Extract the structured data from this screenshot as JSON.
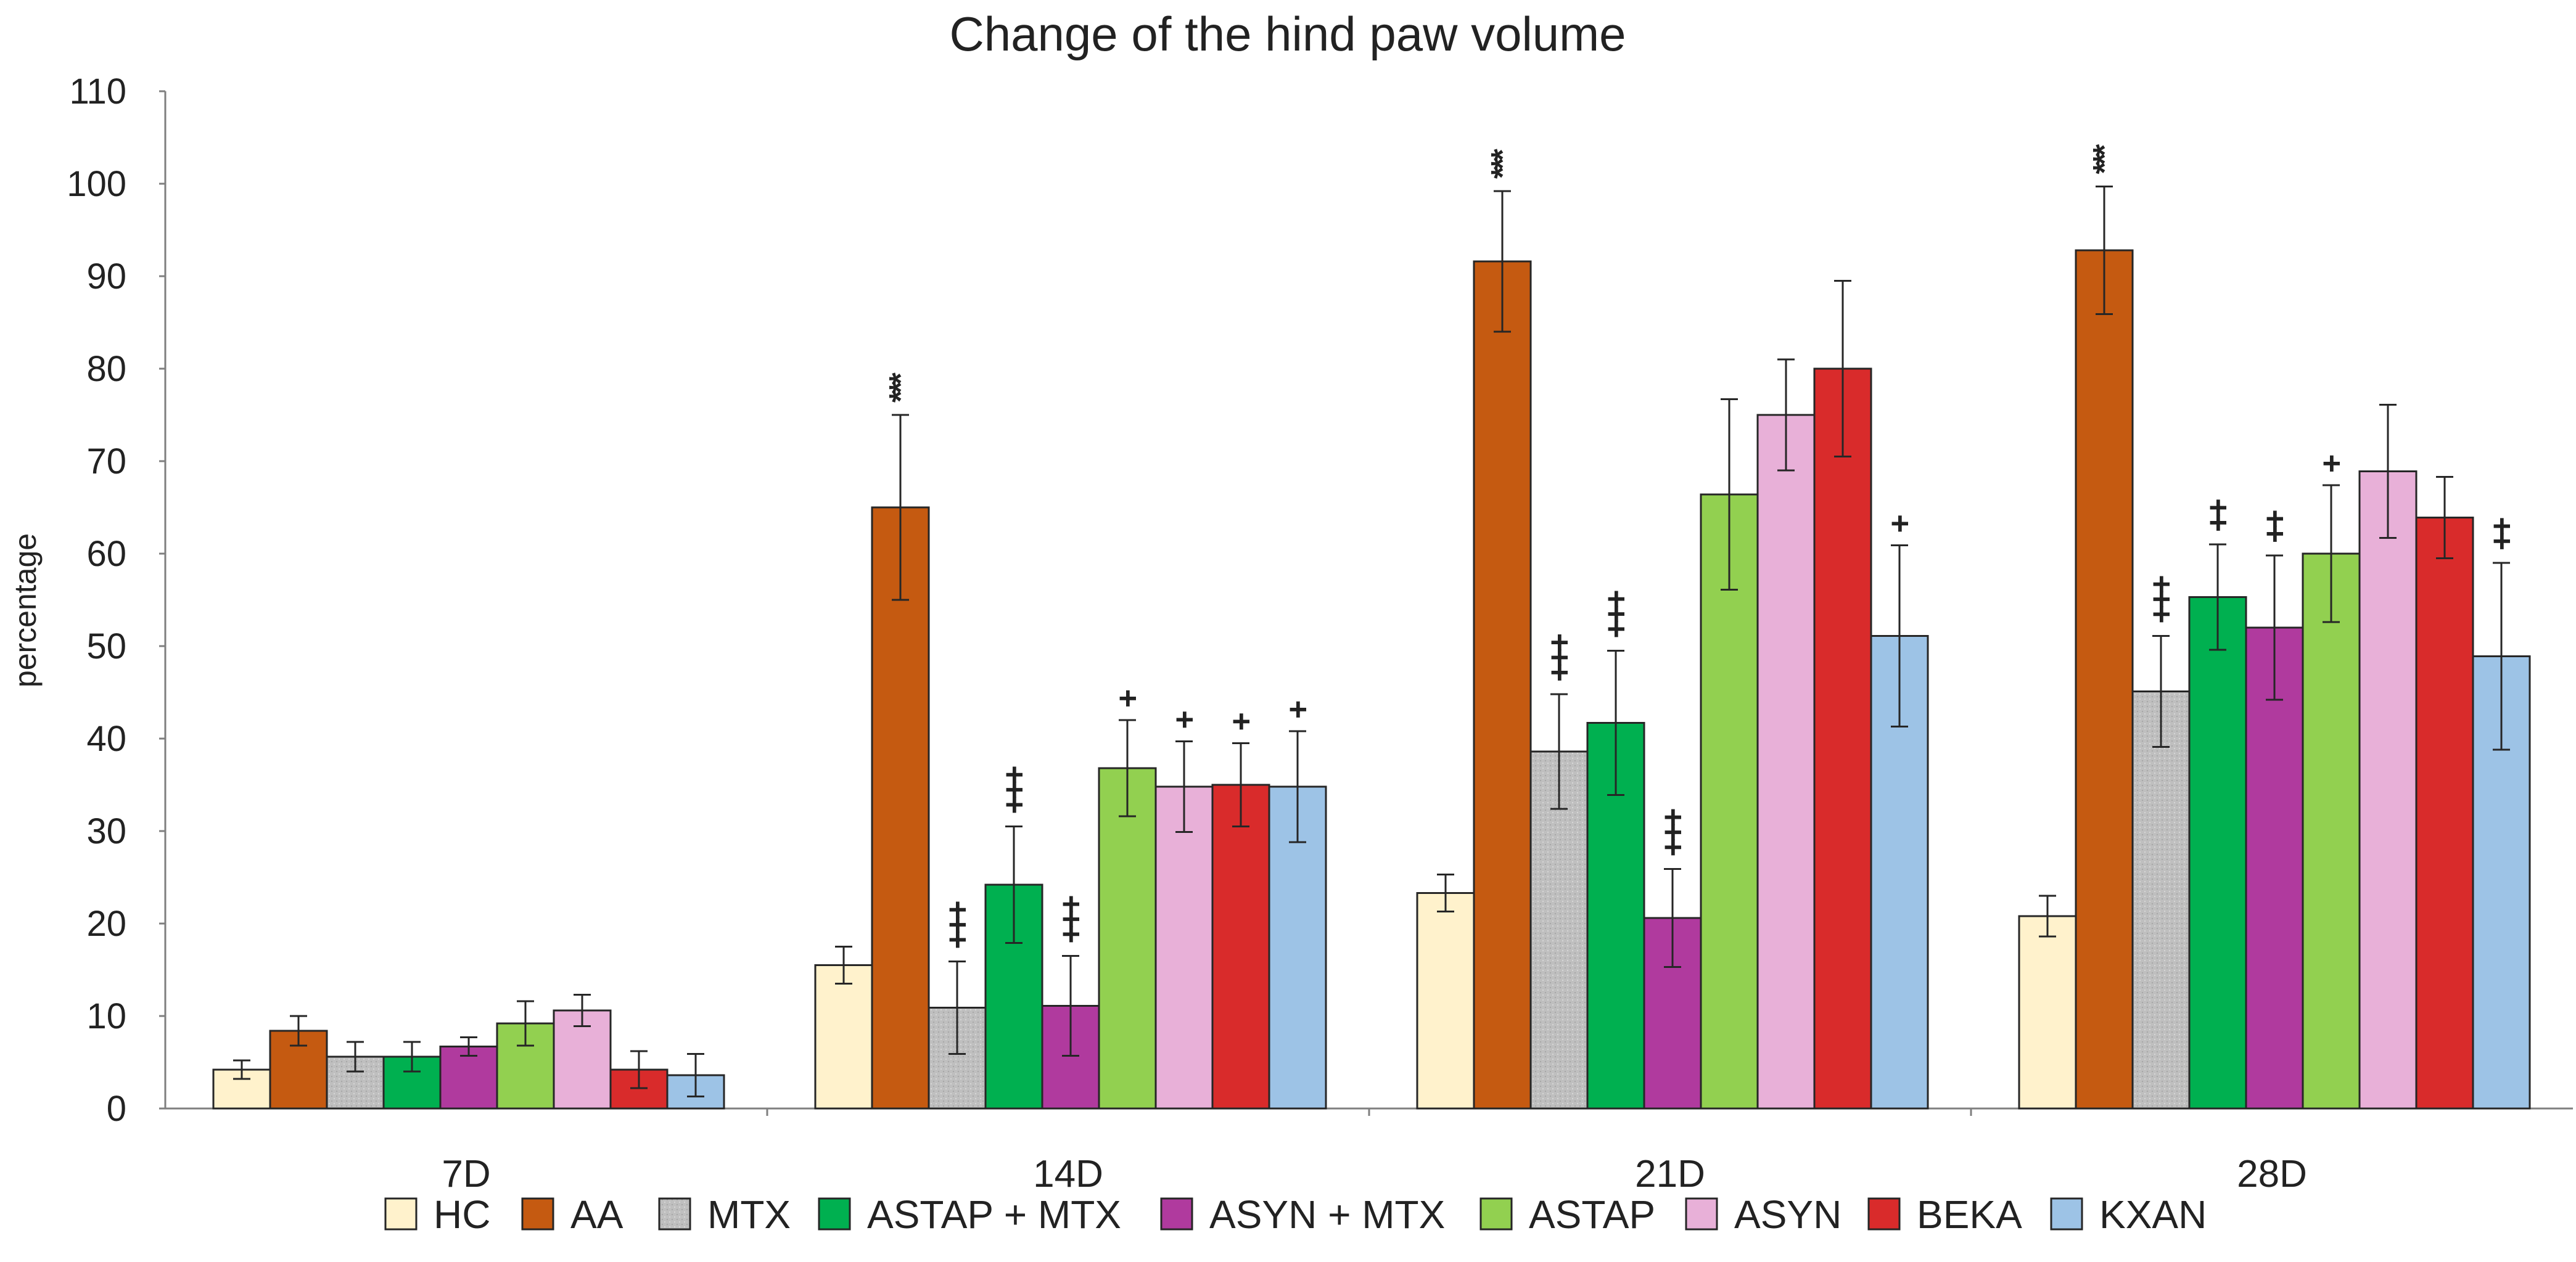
{
  "chart_data": {
    "type": "bar",
    "title": "Change of the hind paw volume",
    "xlabel": "",
    "ylabel": "percentage",
    "ylim": [
      0,
      110
    ],
    "yticks": [
      0,
      10,
      20,
      30,
      40,
      50,
      60,
      70,
      80,
      90,
      100,
      110
    ],
    "grid": false,
    "legend_position": "bottom",
    "categories": [
      "7D",
      "14D",
      "21D",
      "28D"
    ],
    "series": [
      {
        "name": "HC",
        "color": "#FFF2CC",
        "values": [
          4.2,
          15.5,
          23.3,
          20.8
        ],
        "errors": [
          1.0,
          2.0,
          2.0,
          2.2
        ],
        "annotations": [
          "",
          "",
          "",
          ""
        ]
      },
      {
        "name": "AA",
        "color": "#C55A11",
        "values": [
          8.4,
          65.0,
          91.6,
          92.8
        ],
        "errors": [
          1.6,
          10.0,
          7.6,
          6.9
        ],
        "annotations": [
          "",
          "***",
          "***",
          "***"
        ]
      },
      {
        "name": "MTX",
        "color": "#BFBFBF",
        "values": [
          5.6,
          10.9,
          38.6,
          45.1
        ],
        "errors": [
          1.6,
          5.0,
          6.2,
          6.0
        ],
        "annotations": [
          "",
          "+++",
          "+++",
          "+++"
        ]
      },
      {
        "name": "ASTAP + MTX",
        "color": "#00B050",
        "values": [
          5.6,
          24.2,
          41.7,
          55.3
        ],
        "errors": [
          1.6,
          6.3,
          7.8,
          5.7
        ],
        "annotations": [
          "",
          "+++",
          "+++",
          "++"
        ]
      },
      {
        "name": "ASYN + MTX",
        "color": "#B03A9E",
        "values": [
          6.7,
          11.1,
          20.6,
          52.0
        ],
        "errors": [
          1.0,
          5.4,
          5.3,
          7.8
        ],
        "annotations": [
          "",
          "+++",
          "+++",
          "++"
        ]
      },
      {
        "name": "ASTAP",
        "color": "#92D050",
        "values": [
          9.2,
          36.8,
          66.4,
          60.0
        ],
        "errors": [
          2.4,
          5.2,
          10.3,
          7.4
        ],
        "annotations": [
          "",
          "+",
          "",
          "+"
        ]
      },
      {
        "name": "ASYN",
        "color": "#E8B0D8",
        "values": [
          10.6,
          34.8,
          75.0,
          68.9
        ],
        "errors": [
          1.7,
          4.9,
          6.0,
          7.2
        ],
        "annotations": [
          "",
          "+",
          "",
          ""
        ]
      },
      {
        "name": "BEKA",
        "color": "#D92B2B",
        "values": [
          4.2,
          35.0,
          80.0,
          63.9
        ],
        "errors": [
          2.0,
          4.5,
          9.5,
          4.4
        ],
        "annotations": [
          "",
          "+",
          "",
          ""
        ]
      },
      {
        "name": "KXAN",
        "color": "#9DC3E6",
        "values": [
          3.6,
          34.8,
          51.1,
          48.9
        ],
        "errors": [
          2.3,
          6.0,
          9.8,
          10.1
        ],
        "annotations": [
          "",
          "+",
          "+",
          "++"
        ]
      }
    ]
  }
}
